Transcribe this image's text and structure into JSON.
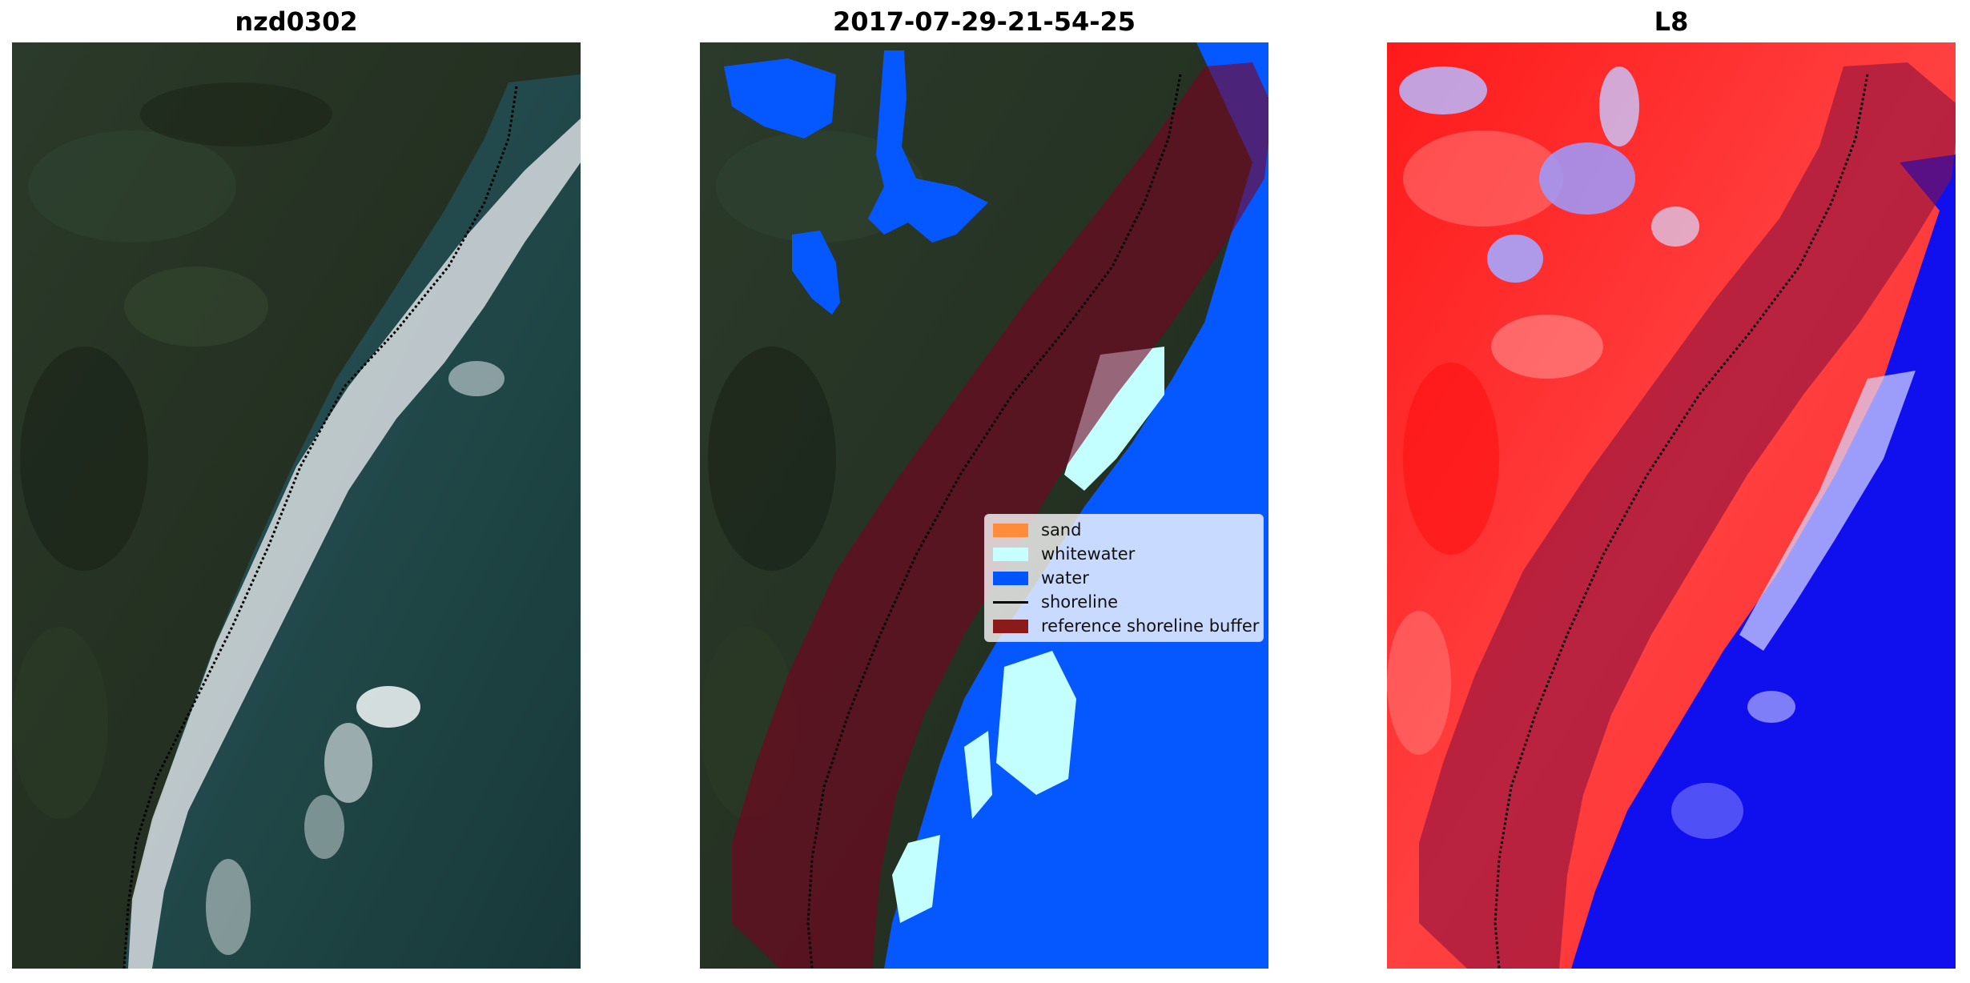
{
  "panels": [
    {
      "title": "nzd0302"
    },
    {
      "title": "2017-07-29-21-54-25"
    },
    {
      "title": "L8"
    }
  ],
  "legend": {
    "items": [
      {
        "label": "sand",
        "color": "#ff8c3a"
      },
      {
        "label": "whitewater",
        "color": "#c8ffff"
      },
      {
        "label": "water",
        "color": "#0055ff"
      },
      {
        "label": "shoreline",
        "color": "#000000"
      },
      {
        "label": "reference shoreline buffer",
        "color": "#8b1a1a"
      }
    ]
  },
  "colors": {
    "land": "#24301f",
    "sea": "#1e3d3a",
    "foam": "#d6dde0",
    "water_class": "#0558ff",
    "whitewater_class": "#c4ffff",
    "buffer": "#7a0020",
    "index_land": "#ff2020",
    "index_water": "#1010ee"
  }
}
